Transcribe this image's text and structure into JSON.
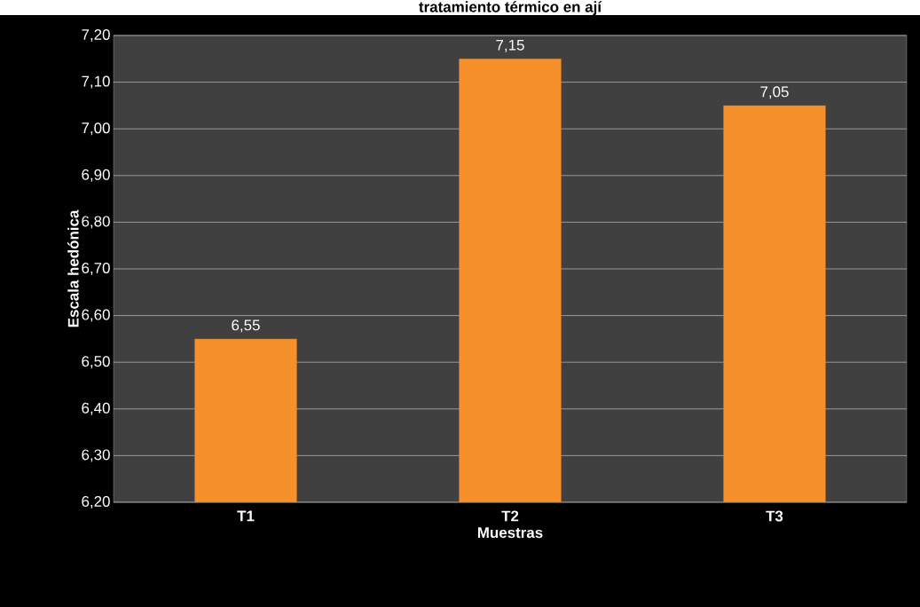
{
  "chart_data": {
    "type": "bar",
    "title": "tratamiento térmico en ají",
    "xlabel": "Muestras",
    "ylabel": "Escala hedónica",
    "categories": [
      "T1",
      "T2",
      "T3"
    ],
    "values": [
      6.55,
      7.15,
      7.05
    ],
    "value_labels": [
      "6,55",
      "7,15",
      "7,05"
    ],
    "color": "#f5902a",
    "ylim": [
      6.2,
      7.2
    ],
    "yticks": [
      {
        "value": 6.2,
        "label": "6,20"
      },
      {
        "value": 6.3,
        "label": "6,30"
      },
      {
        "value": 6.4,
        "label": "6,40"
      },
      {
        "value": 6.5,
        "label": "6,50"
      },
      {
        "value": 6.6,
        "label": "6,60"
      },
      {
        "value": 6.7,
        "label": "6,70"
      },
      {
        "value": 6.8,
        "label": "6,80"
      },
      {
        "value": 6.9,
        "label": "6,90"
      },
      {
        "value": 7.0,
        "label": "7,00"
      },
      {
        "value": 7.1,
        "label": "7,10"
      },
      {
        "value": 7.2,
        "label": "7,20"
      }
    ],
    "grid": "y"
  }
}
